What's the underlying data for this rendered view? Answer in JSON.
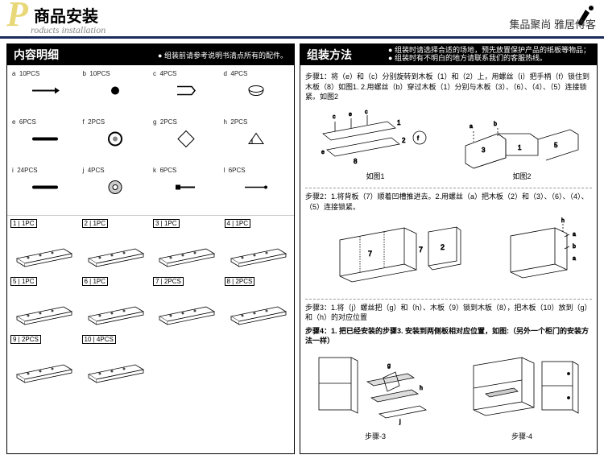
{
  "header": {
    "letter": "P",
    "title": "商品安装",
    "subtitle": "roducts installation",
    "right_text": "集品聚尚  雅居侍客",
    "border_color": "#1a2b5c",
    "letter_color": "#e8d878"
  },
  "left_panel": {
    "title": "内容明细",
    "subtitle": "● 组装前请参考说明书清点所有的配件。",
    "parts": [
      {
        "label": "a",
        "qty": "10PCS",
        "shape": "screw"
      },
      {
        "label": "b",
        "qty": "10PCS",
        "shape": "dot"
      },
      {
        "label": "c",
        "qty": "4PCS",
        "shape": "clip"
      },
      {
        "label": "d",
        "qty": "4PCS",
        "shape": "cup"
      },
      {
        "label": "e",
        "qty": "6PCS",
        "shape": "rod"
      },
      {
        "label": "f",
        "qty": "2PCS",
        "shape": "ring"
      },
      {
        "label": "g",
        "qty": "2PCS",
        "shape": "diamond"
      },
      {
        "label": "h",
        "qty": "2PCS",
        "shape": "triangle"
      },
      {
        "label": "i",
        "qty": "24PCS",
        "shape": "rod"
      },
      {
        "label": "j",
        "qty": "4PCS",
        "shape": "washer"
      },
      {
        "label": "k",
        "qty": "6PCS",
        "shape": "bolt"
      },
      {
        "label": "l",
        "qty": "6PCS",
        "shape": "pin"
      }
    ],
    "boards": [
      {
        "num": "1",
        "qty": "1PC"
      },
      {
        "num": "2",
        "qty": "1PC"
      },
      {
        "num": "3",
        "qty": "1PC"
      },
      {
        "num": "4",
        "qty": "1PC"
      },
      {
        "num": "5",
        "qty": "1PC"
      },
      {
        "num": "6",
        "qty": "1PC"
      },
      {
        "num": "7",
        "qty": "2PCS"
      },
      {
        "num": "8",
        "qty": "2PCS"
      },
      {
        "num": "9",
        "qty": "2PCS"
      },
      {
        "num": "10",
        "qty": "4PCS"
      }
    ]
  },
  "right_panel": {
    "title": "组装方法",
    "subtitle_line1": "● 组装时请选择合适的场地，预先放置保护产品的纸板等物品；",
    "subtitle_line2": "● 组装时有不明白的地方请联系我们的客服热线。",
    "step1": "步骤1：将（e）和（c）分别旋转到木板（1）和（2）上，用螺丝（i）把手柄（f）锁住到木板（8）如图1. 2.用螺丝（b）穿过木板（1）分别与木板（3）、（6）、（4）、（5）连接锁紧。如图2",
    "caption1": "如图1",
    "caption2": "如图2",
    "step2": "步骤2：1.将背板（7）顺着凹槽推进去。2.用螺丝（a）把木板（2）和（3）、（6）、（4）、（5）连接锁紧。",
    "step3": "步骤3：1.将（j）螺丝把（g）和（h）、木板（9）锁到木板（8），把木板（10）放到（g）和（h）的对应位置",
    "step4": "步骤4：1. 把已经安装的步骤3. 安装到两侧板相对应位置，如图:（另外一个柜门的安装方法一样）",
    "caption3": "步骤-3",
    "caption4": "步骤-4"
  }
}
